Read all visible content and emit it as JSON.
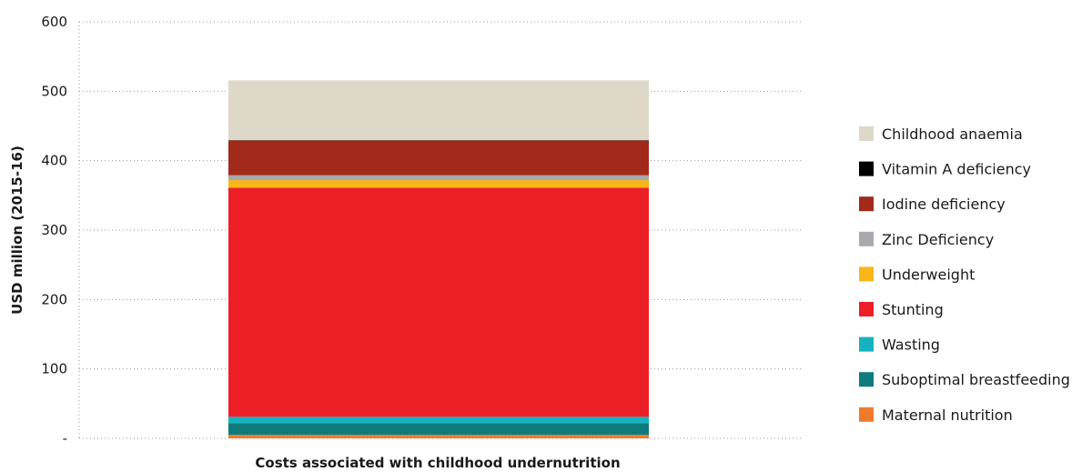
{
  "chart_data": {
    "type": "bar",
    "stacked": true,
    "categories": [
      "Costs associated with childhood undernutrition"
    ],
    "xlabel": "Costs associated with childhood undernutrition",
    "ylabel": "USD million (2015-16)",
    "ylim": [
      0,
      600
    ],
    "yticks": [
      {
        "value": 0,
        "label": "-"
      },
      {
        "value": 100,
        "label": "100"
      },
      {
        "value": 200,
        "label": "200"
      },
      {
        "value": 300,
        "label": "300"
      },
      {
        "value": 400,
        "label": "400"
      },
      {
        "value": 500,
        "label": "500"
      },
      {
        "value": 600,
        "label": "600"
      }
    ],
    "grid": true,
    "legend_position": "right",
    "series": [
      {
        "name": "Maternal nutrition",
        "values": [
          5
        ],
        "color": "#f07c2b"
      },
      {
        "name": "Suboptimal breastfeeding",
        "values": [
          17
        ],
        "color": "#0f7b7c"
      },
      {
        "name": "Wasting",
        "values": [
          9
        ],
        "color": "#16b2c0"
      },
      {
        "name": "Stunting",
        "values": [
          330
        ],
        "color": "#ec1f27"
      },
      {
        "name": "Underweight",
        "values": [
          11
        ],
        "color": "#f9b619"
      },
      {
        "name": "Zinc Deficiency",
        "values": [
          7
        ],
        "color": "#a7a9ac"
      },
      {
        "name": "Iodine deficiency",
        "values": [
          50
        ],
        "color": "#a12a1a"
      },
      {
        "name": "Vitamin A deficiency",
        "values": [
          0.5
        ],
        "color": "#000000"
      },
      {
        "name": "Childhood anaemia",
        "values": [
          86
        ],
        "color": "#ddd8c7"
      }
    ],
    "legend_order": [
      "Childhood anaemia",
      "Vitamin A deficiency",
      "Iodine deficiency",
      "Zinc Deficiency",
      "Underweight",
      "Stunting",
      "Wasting",
      "Suboptimal breastfeeding",
      "Maternal nutrition"
    ]
  }
}
